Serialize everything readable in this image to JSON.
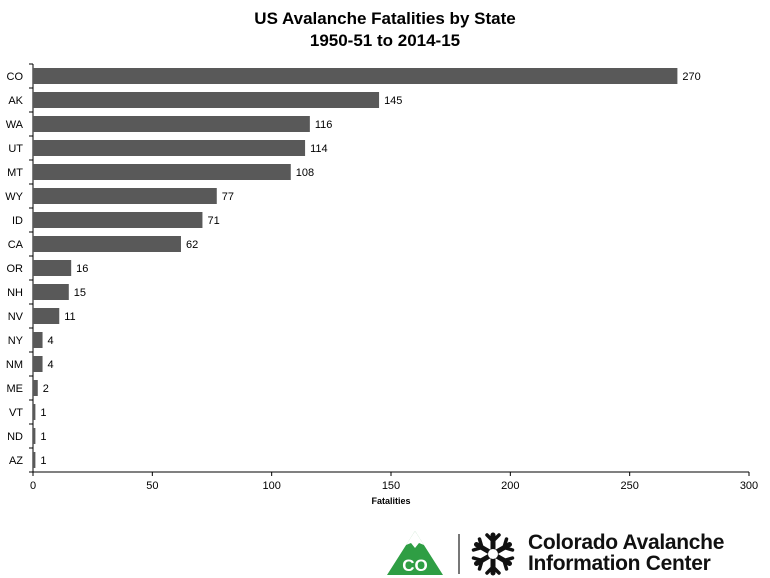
{
  "chart_data": {
    "type": "bar",
    "orientation": "horizontal",
    "title": "US Avalanche Fatalities by State",
    "subtitle": "1950-51 to 2014-15",
    "xlabel": "Fatalities",
    "ylabel": "",
    "categories": [
      "CO",
      "AK",
      "WA",
      "UT",
      "MT",
      "WY",
      "ID",
      "CA",
      "OR",
      "NH",
      "NV",
      "NY",
      "NM",
      "ME",
      "VT",
      "ND",
      "AZ"
    ],
    "values": [
      270,
      145,
      116,
      114,
      108,
      77,
      71,
      62,
      16,
      15,
      11,
      4,
      4,
      2,
      1,
      1,
      1
    ],
    "xlim": [
      0,
      300
    ],
    "xticks": [
      0,
      50,
      100,
      150,
      200,
      250,
      300
    ],
    "bar_color": "#595959",
    "grid": false,
    "legend": "none",
    "data_labels": true
  },
  "logo": {
    "badge_text": "CO",
    "badge_color": "#2f9e44",
    "line1": "Colorado Avalanche",
    "line2": "Information Center"
  }
}
